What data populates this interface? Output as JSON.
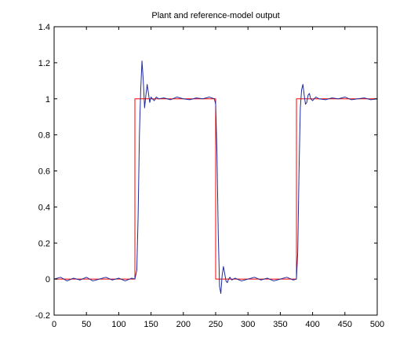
{
  "chart_data": {
    "type": "line",
    "title": "Plant and reference-model output",
    "xlabel": "",
    "ylabel": "",
    "xlim": [
      0,
      500
    ],
    "ylim": [
      -0.2,
      1.4
    ],
    "xticks": [
      0,
      50,
      100,
      150,
      200,
      250,
      300,
      350,
      400,
      450,
      500
    ],
    "yticks": [
      -0.2,
      0,
      0.2,
      0.4,
      0.6,
      0.8,
      1,
      1.2,
      1.4
    ],
    "xtick_labels": [
      "0",
      "50",
      "100",
      "150",
      "200",
      "250",
      "300",
      "350",
      "400",
      "450",
      "500"
    ],
    "ytick_labels": [
      "-0.2",
      "0",
      "0.2",
      "0.4",
      "0.6",
      "0.8",
      "1",
      "1.2",
      "1.4"
    ],
    "grid": false,
    "series": [
      {
        "color": "#ff0000",
        "x": [
          0,
          125,
          125,
          250,
          250,
          375,
          375,
          500
        ],
        "y": [
          0,
          0,
          1,
          1,
          0,
          0,
          1,
          1
        ]
      },
      {
        "color": "#1f2a9a",
        "x": [
          0,
          10,
          20,
          30,
          40,
          50,
          60,
          70,
          80,
          90,
          100,
          110,
          120,
          125,
          128,
          130,
          132,
          134,
          136,
          138,
          140,
          142,
          144,
          146,
          148,
          150,
          152,
          155,
          158,
          162,
          170,
          180,
          190,
          200,
          210,
          220,
          230,
          240,
          248,
          250,
          252,
          254,
          256,
          258,
          260,
          262,
          264,
          266,
          268,
          270,
          272,
          275,
          280,
          290,
          300,
          310,
          320,
          330,
          340,
          350,
          360,
          370,
          375,
          377,
          379,
          381,
          383,
          385,
          387,
          389,
          391,
          393,
          395,
          397,
          400,
          405,
          410,
          420,
          430,
          440,
          450,
          460,
          470,
          480,
          490,
          500
        ],
        "y": [
          0.0,
          0.01,
          -0.01,
          0.005,
          -0.005,
          0.01,
          -0.01,
          0.0,
          0.01,
          -0.005,
          0.005,
          -0.01,
          0.005,
          0.0,
          0.05,
          0.35,
          0.8,
          1.05,
          1.21,
          1.1,
          0.95,
          1.02,
          1.08,
          1.03,
          0.98,
          1.01,
          1.0,
          0.99,
          1.01,
          1.0,
          1.005,
          0.995,
          1.01,
          1.0,
          0.995,
          1.005,
          1.0,
          1.01,
          1.0,
          0.97,
          0.7,
          0.25,
          -0.04,
          -0.08,
          0.02,
          0.07,
          0.03,
          -0.01,
          -0.02,
          0.0,
          0.01,
          -0.005,
          0.005,
          -0.01,
          0.0,
          0.01,
          -0.005,
          0.005,
          -0.01,
          0.0,
          0.01,
          -0.005,
          0.0,
          0.15,
          0.6,
          0.95,
          1.05,
          1.08,
          1.02,
          0.97,
          0.98,
          1.02,
          1.03,
          1.0,
          0.99,
          1.01,
          1.0,
          0.995,
          1.005,
          1.0,
          1.01,
          0.995,
          1.0,
          1.005,
          0.995,
          1.0
        ]
      }
    ]
  }
}
